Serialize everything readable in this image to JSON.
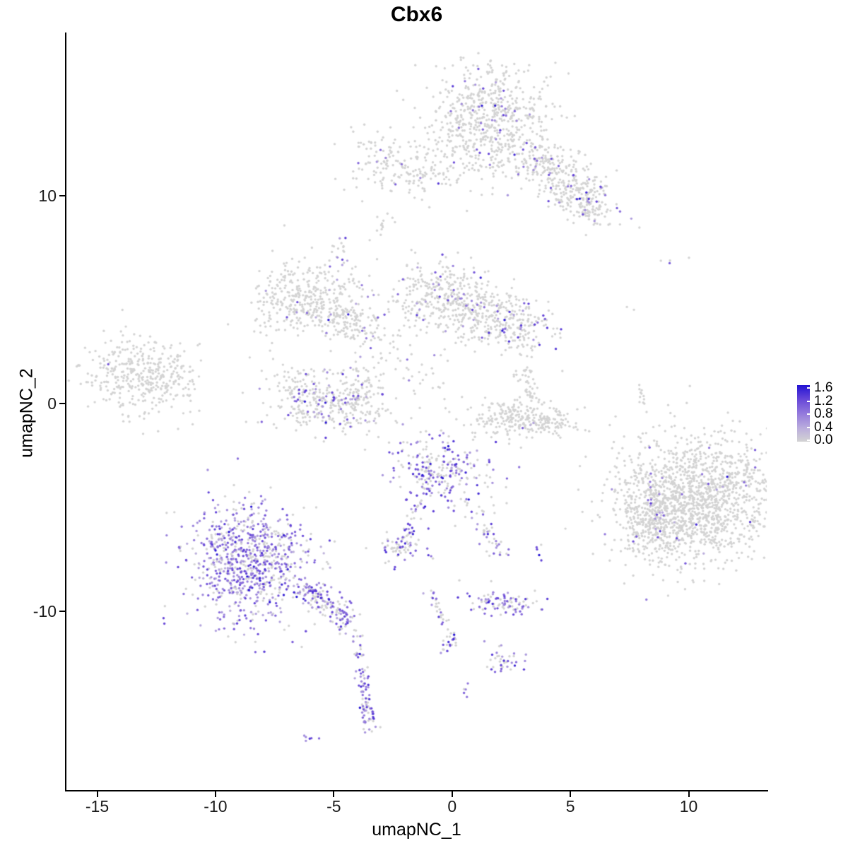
{
  "chart_data": {
    "type": "scatter",
    "title": "Cbx6",
    "xlabel": "umapNC_1",
    "ylabel": "umapNC_2",
    "xlim": [
      -16.3,
      13.3
    ],
    "ylim": [
      -18.6,
      17.8
    ],
    "x_ticks": [
      "-15",
      "-10",
      "-5",
      "0",
      "5",
      "10"
    ],
    "x_tick_values": [
      -15,
      -10,
      -5,
      0,
      5,
      10
    ],
    "y_ticks": [
      "10",
      "0",
      "-10"
    ],
    "y_tick_values": [
      10,
      0,
      -10
    ],
    "grid": false,
    "background": "#ffffff",
    "point_radius_px": 1.7,
    "point_color_zero": "#d3d3d3",
    "legend": {
      "position": "right",
      "labels": [
        "1.6",
        "1.2",
        "0.8",
        "0.4",
        "0.0"
      ],
      "low_color": "#d3d3d3",
      "high_color": "#2313d3",
      "ramp": [
        "#d3d3d3",
        "#b9abdd",
        "#9379dc",
        "#6747d8",
        "#2313d3"
      ]
    },
    "clusters": [
      {
        "id": "top-main",
        "type": "blob",
        "cx": 1.5,
        "cy": 13.6,
        "sx": 1.25,
        "sy": 1.35,
        "rot": -15,
        "n": 620,
        "frac": 0.05,
        "lvl": 0.55
      },
      {
        "id": "top-right-arm",
        "type": "blob",
        "cx": 4.6,
        "cy": 11.0,
        "sx": 1.5,
        "sy": 0.6,
        "rot": -38,
        "n": 300,
        "frac": 0.09,
        "lvl": 0.6
      },
      {
        "id": "top-right-tip",
        "type": "blob",
        "cx": 5.5,
        "cy": 9.6,
        "sx": 0.55,
        "sy": 0.45,
        "rot": -30,
        "n": 110,
        "frac": 0.12,
        "lvl": 0.6
      },
      {
        "id": "top-left-arm",
        "type": "blob",
        "cx": -1.9,
        "cy": 11.5,
        "sx": 1.25,
        "sy": 0.75,
        "rot": -8,
        "n": 190,
        "frac": 0.07,
        "lvl": 0.6
      },
      {
        "id": "strand-a",
        "type": "blob",
        "cx": -2.9,
        "cy": 8.6,
        "sx": 0.25,
        "sy": 0.35,
        "rot": 0,
        "n": 9,
        "frac": 0,
        "lvl": 0
      },
      {
        "id": "c-below",
        "type": "chain",
        "x1": -3.1,
        "y1": 8.9,
        "x2": -2.9,
        "y2": 8.4,
        "w": 0.08,
        "n": 4,
        "frac": 0,
        "lvl": 0
      },
      {
        "id": "purple-knot",
        "type": "blob",
        "cx": -4.7,
        "cy": 7.2,
        "sx": 0.22,
        "sy": 0.45,
        "rot": 0,
        "n": 16,
        "frac": 0.55,
        "lvl": 0.5
      },
      {
        "id": "knot-chain",
        "type": "chain",
        "x1": -4.3,
        "y1": 6.3,
        "x2": -3.7,
        "y2": 4.9,
        "w": 0.12,
        "n": 10,
        "frac": 0.15,
        "lvl": 0.5
      },
      {
        "id": "hook-main",
        "type": "blob",
        "cx": -6.4,
        "cy": 5.1,
        "sx": 1.05,
        "sy": 0.85,
        "rot": 20,
        "n": 300,
        "frac": 0.015,
        "lvl": 0.45
      },
      {
        "id": "hook-arm",
        "type": "blob",
        "cx": -4.5,
        "cy": 4.0,
        "sx": 0.95,
        "sy": 0.5,
        "rot": -25,
        "n": 170,
        "frac": 0.05,
        "lvl": 0.5
      },
      {
        "id": "mid-left-lobe",
        "type": "blob",
        "cx": -0.5,
        "cy": 5.2,
        "sx": 0.95,
        "sy": 0.9,
        "rot": 0,
        "n": 300,
        "frac": 0.08,
        "lvl": 0.55
      },
      {
        "id": "mid-right-lobe",
        "type": "blob",
        "cx": 2.3,
        "cy": 3.9,
        "sx": 0.9,
        "sy": 0.75,
        "rot": -20,
        "n": 240,
        "frac": 0.1,
        "lvl": 0.55
      },
      {
        "id": "mid-bridge",
        "type": "blob",
        "cx": 0.9,
        "cy": 4.5,
        "sx": 0.8,
        "sy": 0.5,
        "rot": -15,
        "n": 90,
        "frac": 0.06,
        "lvl": 0.5
      },
      {
        "id": "mid-scatter",
        "type": "blob",
        "cx": -2.6,
        "cy": 2.6,
        "sx": 1.3,
        "sy": 1.3,
        "rot": 0,
        "n": 70,
        "frac": 0.07,
        "lvl": 0.5
      },
      {
        "id": "left-grey",
        "type": "blob",
        "cx": -13.2,
        "cy": 1.3,
        "sx": 1.1,
        "sy": 0.95,
        "rot": -10,
        "n": 360,
        "frac": 0.004,
        "lvl": 0.4
      },
      {
        "id": "left-grey-fringe",
        "type": "blob",
        "cx": -11.4,
        "cy": 1.6,
        "sx": 0.5,
        "sy": 0.8,
        "rot": 0,
        "n": 30,
        "frac": 0,
        "lvl": 0
      },
      {
        "id": "bowl-main",
        "type": "blob",
        "cx": -5.2,
        "cy": -0.1,
        "sx": 1.4,
        "sy": 0.7,
        "rot": -8,
        "n": 300,
        "frac": 0.13,
        "lvl": 0.5
      },
      {
        "id": "bowl-left-rim",
        "type": "blob",
        "cx": -6.6,
        "cy": 0.8,
        "sx": 0.45,
        "sy": 0.6,
        "rot": 15,
        "n": 60,
        "frac": 0.08,
        "lvl": 0.5
      },
      {
        "id": "bowl-right-rim",
        "type": "blob",
        "cx": -3.8,
        "cy": 0.8,
        "sx": 0.4,
        "sy": 0.6,
        "rot": -15,
        "n": 55,
        "frac": 0.1,
        "lvl": 0.5
      },
      {
        "id": "boat",
        "type": "blob",
        "cx": 3.2,
        "cy": -0.8,
        "sx": 1.25,
        "sy": 0.45,
        "rot": -5,
        "n": 280,
        "frac": 0.004,
        "lvl": 0.4
      },
      {
        "id": "boat-strand",
        "type": "chain",
        "x1": 3.0,
        "y1": 1.7,
        "x2": 3.4,
        "y2": 0.0,
        "w": 0.25,
        "n": 40,
        "frac": 0.04,
        "lvl": 0.5
      },
      {
        "id": "center-expr",
        "type": "blob",
        "cx": -0.5,
        "cy": -3.2,
        "sx": 1.0,
        "sy": 0.85,
        "rot": -10,
        "n": 250,
        "frac": 0.5,
        "lvl": 0.55
      },
      {
        "id": "center-expr-armL",
        "type": "chain",
        "x1": -1.3,
        "y1": -4.6,
        "x2": -2.3,
        "y2": -7.2,
        "w": 0.15,
        "n": 25,
        "frac": 0.5,
        "lvl": 0.55
      },
      {
        "id": "center-expr-armR",
        "type": "chain",
        "x1": 0.6,
        "y1": -4.3,
        "x2": 1.9,
        "y2": -6.9,
        "w": 0.2,
        "n": 35,
        "frac": 0.45,
        "lvl": 0.55
      },
      {
        "id": "armR-tip",
        "type": "blob",
        "cx": 1.9,
        "cy": -7.2,
        "sx": 0.2,
        "sy": 0.3,
        "rot": 0,
        "n": 12,
        "frac": 0.7,
        "lvl": 0.6
      },
      {
        "id": "pair-right",
        "type": "blob",
        "cx": 3.65,
        "cy": -7.2,
        "sx": 0.12,
        "sy": 0.25,
        "rot": 0,
        "n": 5,
        "frac": 0.9,
        "lvl": 0.75
      },
      {
        "id": "small-mixed",
        "type": "blob",
        "cx": -2.3,
        "cy": -6.9,
        "sx": 0.5,
        "sy": 0.4,
        "rot": -10,
        "n": 60,
        "frac": 0.45,
        "lvl": 0.55
      },
      {
        "id": "small-mixed-chain",
        "type": "chain",
        "x1": -1.9,
        "y1": -5.7,
        "x2": -1.6,
        "y2": -6.3,
        "w": 0.1,
        "n": 8,
        "frac": 0.7,
        "lvl": 0.6
      },
      {
        "id": "small-mixed-dot",
        "type": "blob",
        "cx": -0.9,
        "cy": -7.3,
        "sx": 0.1,
        "sy": 0.1,
        "rot": 0,
        "n": 3,
        "frac": 0.8,
        "lvl": 0.6
      },
      {
        "id": "big-purple",
        "type": "blob",
        "cx": -8.5,
        "cy": -7.6,
        "sx": 1.25,
        "sy": 1.45,
        "rot": 10,
        "n": 820,
        "frac": 0.65,
        "lvl": 0.5
      },
      {
        "id": "big-purple-tail1",
        "type": "chain",
        "x1": -6.3,
        "y1": -8.8,
        "x2": -4.3,
        "y2": -10.6,
        "w": 0.3,
        "n": 150,
        "frac": 0.55,
        "lvl": 0.55
      },
      {
        "id": "big-purple-tail2",
        "type": "chain",
        "x1": -4.2,
        "y1": -10.9,
        "x2": -3.9,
        "y2": -12.4,
        "w": 0.12,
        "n": 22,
        "frac": 0.55,
        "lvl": 0.55
      },
      {
        "id": "big-purple-tail3",
        "type": "chain",
        "x1": -3.9,
        "y1": -12.7,
        "x2": -3.5,
        "y2": -15.0,
        "w": 0.15,
        "n": 55,
        "frac": 0.65,
        "lvl": 0.55
      },
      {
        "id": "tail-tip",
        "type": "blob",
        "cx": -3.55,
        "cy": -15.2,
        "sx": 0.18,
        "sy": 0.3,
        "rot": 0,
        "n": 22,
        "frac": 0.7,
        "lvl": 0.55
      },
      {
        "id": "tiny-pair",
        "type": "blob",
        "cx": -6.1,
        "cy": -16.1,
        "sx": 0.15,
        "sy": 0.12,
        "rot": 0,
        "n": 6,
        "frac": 0.7,
        "lvl": 0.55
      },
      {
        "id": "mid-chain",
        "type": "chain",
        "x1": -0.9,
        "y1": -9.0,
        "x2": 0.0,
        "y2": -11.2,
        "w": 0.15,
        "n": 30,
        "frac": 0.4,
        "lvl": 0.5
      },
      {
        "id": "mid-chain2",
        "type": "chain",
        "x1": 0.0,
        "y1": -11.2,
        "x2": -0.4,
        "y2": -12.1,
        "w": 0.12,
        "n": 20,
        "frac": 0.55,
        "lvl": 0.55
      },
      {
        "id": "bottom-h-cluster",
        "type": "blob",
        "cx": 2.2,
        "cy": -9.6,
        "sx": 0.85,
        "sy": 0.3,
        "rot": -8,
        "n": 95,
        "frac": 0.5,
        "lvl": 0.55
      },
      {
        "id": "bottom-small",
        "type": "blob",
        "cx": 2.25,
        "cy": -12.4,
        "sx": 0.4,
        "sy": 0.3,
        "rot": -20,
        "n": 38,
        "frac": 0.55,
        "lvl": 0.6
      },
      {
        "id": "dot-pair-bottom",
        "type": "blob",
        "cx": 0.55,
        "cy": -13.9,
        "sx": 0.1,
        "sy": 0.18,
        "rot": 0,
        "n": 5,
        "frac": 0.8,
        "lvl": 0.6
      },
      {
        "id": "right-main",
        "type": "blob",
        "cx": 10.4,
        "cy": -4.6,
        "sx": 1.7,
        "sy": 1.5,
        "rot": 25,
        "n": 1500,
        "frac": 0.02,
        "lvl": 0.5
      },
      {
        "id": "right-left-lobe",
        "type": "blob",
        "cx": 8.3,
        "cy": -5.6,
        "sx": 0.65,
        "sy": 0.95,
        "rot": 10,
        "n": 220,
        "frac": 0.06,
        "lvl": 0.5
      },
      {
        "id": "iso-blue-dot",
        "type": "blob",
        "cx": 9.3,
        "cy": 6.8,
        "sx": 0.05,
        "sy": 0.05,
        "rot": 0,
        "n": 1,
        "frac": 1,
        "lvl": 0.95
      },
      {
        "id": "iso-grey-a",
        "type": "blob",
        "cx": 9.0,
        "cy": 6.85,
        "sx": 0.12,
        "sy": 0.06,
        "rot": 0,
        "n": 2,
        "frac": 0,
        "lvl": 0
      },
      {
        "id": "iso-grey-b",
        "type": "blob",
        "cx": 9.9,
        "cy": 7.05,
        "sx": 0.05,
        "sy": 0.05,
        "rot": 0,
        "n": 1,
        "frac": 0,
        "lvl": 0
      },
      {
        "id": "sparse-right",
        "type": "chain",
        "x1": 7.4,
        "y1": 4.9,
        "x2": 7.7,
        "y2": 4.5,
        "w": 0.1,
        "n": 2,
        "frac": 0,
        "lvl": 0
      },
      {
        "id": "right-strand",
        "type": "chain",
        "x1": 7.9,
        "y1": 0.9,
        "x2": 8.1,
        "y2": -0.5,
        "w": 0.1,
        "n": 12,
        "frac": 0,
        "lvl": 0
      },
      {
        "id": "right-dot",
        "type": "blob",
        "cx": 7.9,
        "cy": -1.7,
        "sx": 0.08,
        "sy": 0.08,
        "rot": 0,
        "n": 2,
        "frac": 0,
        "lvl": 0
      },
      {
        "id": "sparse-ce",
        "type": "blob",
        "cx": 2.0,
        "cy": -4.9,
        "sx": 0.3,
        "sy": 0.5,
        "rot": 0,
        "n": 6,
        "frac": 0.1,
        "lvl": 0.5
      }
    ]
  }
}
